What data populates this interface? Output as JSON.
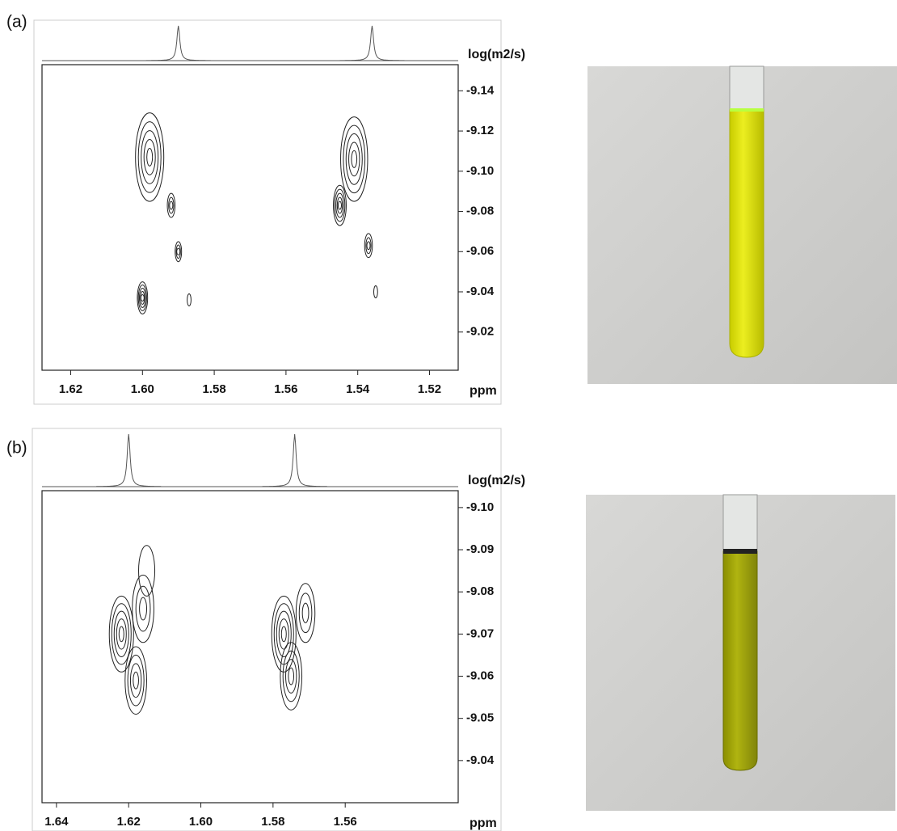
{
  "chart_data": [
    {
      "type": "contour",
      "panel_label": "(a)",
      "xlabel": "ppm",
      "ylabel": "log(m2/s)",
      "xlim": [
        1.628,
        1.512
      ],
      "ylim": [
        -9.001,
        -9.153
      ],
      "xticks": [
        1.62,
        {
          "value": 1.6,
          "label": "1.60"
        },
        1.58,
        1.56,
        1.54,
        1.52
      ],
      "yticks": [
        -9.14,
        -9.12,
        {
          "value": -9.1,
          "label": "-9.10"
        },
        -9.08,
        -9.06,
        -9.04,
        -9.02
      ],
      "x": [
        1.598,
        1.592,
        1.59,
        1.6,
        1.587,
        1.541,
        1.545,
        1.537,
        1.535
      ],
      "values": [
        -9.107,
        -9.083,
        -9.06,
        -9.037,
        -9.036,
        -9.106,
        -9.083,
        -9.063,
        -9.04
      ],
      "heights": [
        0.022,
        0.006,
        0.005,
        0.008,
        0.003,
        0.021,
        0.01,
        0.006,
        0.003
      ],
      "levels": [
        5,
        3,
        3,
        5,
        1,
        5,
        5,
        3,
        1
      ],
      "projection_x": [
        1.59,
        1.536
      ],
      "color": "#222"
    },
    {
      "type": "contour",
      "panel_label": "(b)",
      "xlabel": "ppm",
      "ylabel": "log(m2/s)",
      "xlim": [
        1.644,
        1.5287
      ],
      "ylim": [
        -9.03,
        -9.104
      ],
      "xticks": [
        1.64,
        1.62,
        {
          "value": 1.6,
          "label": "1.60"
        },
        1.58,
        1.56
      ],
      "yticks": [
        {
          "value": -9.1,
          "label": "-9.10"
        },
        -9.09,
        -9.08,
        -9.07,
        -9.06,
        -9.05,
        -9.04
      ],
      "x": [
        1.622,
        1.618,
        1.616,
        1.615,
        1.577,
        1.575,
        1.571
      ],
      "values": [
        -9.07,
        -9.059,
        -9.076,
        -9.085,
        -9.07,
        -9.06,
        -9.075
      ],
      "heights": [
        0.009,
        0.008,
        0.008,
        0.006,
        0.009,
        0.008,
        0.007
      ],
      "levels": [
        5,
        4,
        3,
        1,
        5,
        4,
        3
      ],
      "projection_x": [
        1.62,
        1.574
      ],
      "color": "#222"
    }
  ]
}
